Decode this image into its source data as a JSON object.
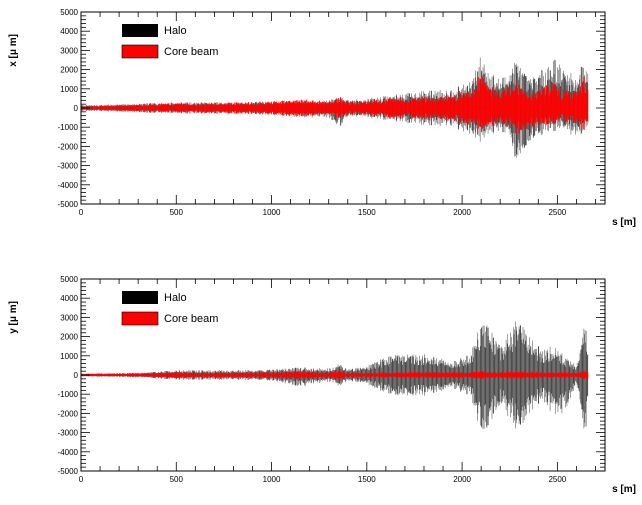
{
  "colors": {
    "halo": "#000000",
    "core": "#ff0000",
    "frame": "#000000",
    "background": "#ffffff"
  },
  "chart_data": [
    {
      "type": "scatter",
      "xlabel": "s [m]",
      "ylabel": "x [μ m]",
      "xlim": [
        0,
        2750
      ],
      "ylim": [
        -5000,
        5000
      ],
      "xticks": [
        0,
        500,
        1000,
        1500,
        2000,
        2500
      ],
      "yticks": [
        -5000,
        -4000,
        -3000,
        -2000,
        -1000,
        0,
        1000,
        2000,
        3000,
        4000,
        5000
      ],
      "legend": {
        "placement": "top-left",
        "entries": [
          {
            "label": "Halo"
          },
          {
            "label": "Core beam"
          }
        ]
      },
      "series": [
        {
          "name": "Halo",
          "envelope": {
            "s": [
              0,
              200,
              350,
              500,
              600,
              800,
              1000,
              1150,
              1300,
              1360,
              1400,
              1500,
              1650,
              1800,
              1950,
              2050,
              2100,
              2140,
              2200,
              2250,
              2280,
              2350,
              2420,
              2480,
              2520,
              2600,
              2640,
              2660
            ],
            "max": [
              150,
              200,
              250,
              300,
              300,
              300,
              350,
              400,
              400,
              600,
              400,
              500,
              700,
              900,
              1000,
              1400,
              2800,
              2000,
              1500,
              2000,
              2600,
              1500,
              2000,
              2700,
              2200,
              1600,
              2600,
              2000
            ],
            "min": [
              -150,
              -200,
              -250,
              -300,
              -300,
              -300,
              -350,
              -500,
              -500,
              -1000,
              -400,
              -500,
              -700,
              -900,
              -1000,
              -1400,
              -1800,
              -1500,
              -1200,
              -1600,
              -2900,
              -1800,
              -1400,
              -1300,
              -1000,
              -1600,
              -1300,
              -1000
            ]
          }
        },
        {
          "name": "Core beam",
          "envelope": {
            "s": [
              0,
              200,
              350,
              500,
              600,
              800,
              1000,
              1150,
              1300,
              1360,
              1400,
              1500,
              1650,
              1800,
              1950,
              2050,
              2100,
              2140,
              2200,
              2250,
              2280,
              2350,
              2420,
              2480,
              2520,
              2600,
              2640,
              2660
            ],
            "max": [
              100,
              150,
              200,
              300,
              250,
              300,
              350,
              450,
              400,
              550,
              350,
              400,
              500,
              600,
              700,
              1000,
              2000,
              1300,
              900,
              1400,
              1500,
              800,
              1100,
              1400,
              1000,
              900,
              1700,
              1200
            ],
            "min": [
              -100,
              -150,
              -200,
              -250,
              -250,
              -300,
              -350,
              -450,
              -400,
              -550,
              -350,
              -400,
              -500,
              -600,
              -700,
              -1000,
              -1200,
              -1100,
              -800,
              -1100,
              -1500,
              -1200,
              -900,
              -900,
              -700,
              -800,
              -1200,
              -900
            ]
          }
        }
      ]
    },
    {
      "type": "scatter",
      "xlabel": "s [m]",
      "ylabel": "y [μ m]",
      "xlim": [
        0,
        2750
      ],
      "ylim": [
        -5000,
        5000
      ],
      "xticks": [
        0,
        500,
        1000,
        1500,
        2000,
        2500
      ],
      "yticks": [
        -5000,
        -4000,
        -3000,
        -2000,
        -1000,
        0,
        1000,
        2000,
        3000,
        4000,
        5000
      ],
      "legend": {
        "placement": "top-left",
        "entries": [
          {
            "label": "Halo"
          },
          {
            "label": "Core beam"
          }
        ]
      },
      "series": [
        {
          "name": "Halo",
          "envelope": {
            "s": [
              0,
              200,
              350,
              500,
              600,
              800,
              1000,
              1150,
              1300,
              1360,
              1400,
              1500,
              1650,
              1800,
              1950,
              2050,
              2100,
              2150,
              2200,
              2280,
              2300,
              2350,
              2420,
              2480,
              2540,
              2600,
              2650,
              2660
            ],
            "max": [
              80,
              100,
              150,
              250,
              250,
              250,
              300,
              400,
              350,
              600,
              300,
              500,
              1200,
              1100,
              700,
              1200,
              3000,
              2400,
              1500,
              2800,
              3000,
              2200,
              1300,
              1600,
              1000,
              500,
              3000,
              1500
            ],
            "min": [
              -80,
              -100,
              -150,
              -250,
              -250,
              -250,
              -300,
              -600,
              -350,
              -600,
              -300,
              -500,
              -1200,
              -1100,
              -700,
              -1200,
              -3300,
              -2500,
              -1500,
              -2800,
              -3000,
              -2200,
              -1300,
              -2200,
              -2000,
              -500,
              -3500,
              -1500
            ]
          }
        },
        {
          "name": "Core beam",
          "envelope": {
            "s": [
              0,
              200,
              350,
              500,
              600,
              800,
              1000,
              1150,
              1300,
              1360,
              1400,
              1500,
              1650,
              1800,
              1950,
              2050,
              2100,
              2150,
              2200,
              2280,
              2300,
              2350,
              2420,
              2480,
              2540,
              2600,
              2650,
              2660
            ],
            "max": [
              60,
              80,
              100,
              150,
              120,
              120,
              150,
              200,
              150,
              250,
              120,
              120,
              150,
              150,
              150,
              150,
              200,
              180,
              150,
              200,
              200,
              180,
              150,
              150,
              150,
              120,
              250,
              150
            ],
            "min": [
              -60,
              -80,
              -100,
              -150,
              -120,
              -120,
              -150,
              -200,
              -150,
              -250,
              -120,
              -120,
              -150,
              -150,
              -150,
              -150,
              -200,
              -180,
              -150,
              -200,
              -200,
              -180,
              -150,
              -150,
              -150,
              -120,
              -250,
              -150
            ]
          }
        }
      ]
    }
  ]
}
